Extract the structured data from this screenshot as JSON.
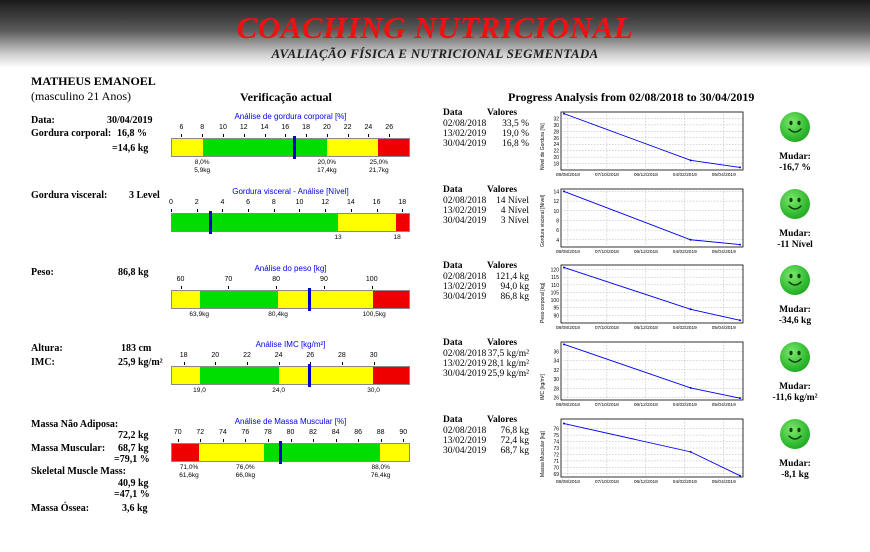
{
  "header": {
    "title": "COACHING NUTRICIONAL",
    "subtitle": "AVALIAÇÃO FÍSICA E NUTRICIONAL SEGMENTADA"
  },
  "person": {
    "name": "MATHEUS EMANOEL",
    "info": "(masculino 21 Anos)"
  },
  "headers": {
    "verif": "Verificação actual",
    "progress": "Progress Analysis from 02/08/2018 to 30/04/2019",
    "data": "Data",
    "valores": "Valores"
  },
  "left": {
    "data_label": "Data:",
    "data_value": "30/04/2019",
    "gordura_label": "Gordura corporal:",
    "gordura_value": "16,8 %",
    "gordura_kg": "=14,6 kg",
    "visceral_label": "Gordura visceral:",
    "visceral_value": "3 Level",
    "peso_label": "Peso:",
    "peso_value": "86,8 kg",
    "altura_label": "Altura:",
    "altura_value": "183 cm",
    "imc_label": "IMC:",
    "imc_value": "25,9 kg/m²",
    "massa_na_label": "Massa Não Adiposa:",
    "massa_na_value": "72,2 kg",
    "massa_musc_label": "Massa Muscular:",
    "massa_musc_value": "68,7 kg",
    "massa_musc_pct": "=79,1 %",
    "skeletal_label": "Skeletal Muscle Mass:",
    "skeletal_value": "40,9 kg",
    "skeletal_pct": "=47,1 %",
    "ossea_label": "Massa Óssea:",
    "ossea_value": "3,6 kg"
  },
  "gauges": [
    {
      "title": "Análise de gordura corporal [%]",
      "ticks": [
        "6",
        "8",
        "10",
        "12",
        "14",
        "16",
        "18",
        "20",
        "22",
        "24",
        "26"
      ],
      "min": 5,
      "max": 28,
      "segments": [
        {
          "from": 5,
          "to": 8,
          "color": "#ffff00"
        },
        {
          "from": 8,
          "to": 20,
          "color": "#00dd00"
        },
        {
          "from": 20,
          "to": 25,
          "color": "#ffff00"
        },
        {
          "from": 25,
          "to": 28,
          "color": "#ee0000"
        }
      ],
      "value": 16.8,
      "below": [
        {
          "at": 8,
          "l1": "8,0%",
          "l2": "5,9kg"
        },
        {
          "at": 20,
          "l1": "20,0%",
          "l2": "17,4kg"
        },
        {
          "at": 25,
          "l1": "25,0%",
          "l2": "21,7kg"
        }
      ]
    },
    {
      "title": "Gordura visceral - Análise [Nível]",
      "ticks": [
        "0",
        "2",
        "4",
        "6",
        "8",
        "10",
        "12",
        "14",
        "16",
        "18"
      ],
      "min": 0,
      "max": 18.6,
      "segments": [
        {
          "from": 0,
          "to": 13,
          "color": "#00dd00"
        },
        {
          "from": 13,
          "to": 17.6,
          "color": "#ffff00"
        },
        {
          "from": 17.6,
          "to": 18.6,
          "color": "#ee0000"
        }
      ],
      "value": 3,
      "below": [
        {
          "at": 13,
          "l1": "13",
          "l2": ""
        },
        {
          "at": 17.6,
          "l1": "18",
          "l2": ""
        }
      ]
    },
    {
      "title": "Análise do peso [kg]",
      "ticks": [
        "60",
        "70",
        "80",
        "90",
        "100"
      ],
      "min": 58,
      "max": 108,
      "segments": [
        {
          "from": 58,
          "to": 63.9,
          "color": "#ffff00"
        },
        {
          "from": 63.9,
          "to": 80.4,
          "color": "#00dd00"
        },
        {
          "from": 80.4,
          "to": 100.5,
          "color": "#ffff00"
        },
        {
          "from": 100.5,
          "to": 108,
          "color": "#ee0000"
        }
      ],
      "value": 86.8,
      "below": [
        {
          "at": 63.9,
          "l1": "63,9kg",
          "l2": ""
        },
        {
          "at": 80.4,
          "l1": "80,4kg",
          "l2": ""
        },
        {
          "at": 100.5,
          "l1": "100,5kg",
          "l2": ""
        }
      ]
    },
    {
      "title": "Análise IMC [kg/m²]",
      "ticks": [
        "18",
        "20",
        "22",
        "24",
        "26",
        "28",
        "30"
      ],
      "min": 17.2,
      "max": 32.3,
      "segments": [
        {
          "from": 17.2,
          "to": 19,
          "color": "#ffff00"
        },
        {
          "from": 19,
          "to": 24,
          "color": "#00dd00"
        },
        {
          "from": 24,
          "to": 30,
          "color": "#ffff00"
        },
        {
          "from": 30,
          "to": 32.3,
          "color": "#ee0000"
        }
      ],
      "value": 25.9,
      "below": [
        {
          "at": 19,
          "l1": "19,0",
          "l2": ""
        },
        {
          "at": 24,
          "l1": "24,0",
          "l2": ""
        },
        {
          "at": 30,
          "l1": "30,0",
          "l2": ""
        }
      ]
    },
    {
      "title": "Análise de Massa Muscular [%]",
      "ticks": [
        "70",
        "72",
        "74",
        "76",
        "78",
        "80",
        "82",
        "84",
        "86",
        "88",
        "90"
      ],
      "min": 69.4,
      "max": 90.6,
      "segments": [
        {
          "from": 69.4,
          "to": 71.8,
          "color": "#ee0000"
        },
        {
          "from": 71.8,
          "to": 77.6,
          "color": "#ffff00"
        },
        {
          "from": 77.6,
          "to": 88,
          "color": "#00dd00"
        },
        {
          "from": 88,
          "to": 90.6,
          "color": "#ffff00"
        }
      ],
      "value": 79.1,
      "below": [
        {
          "at": 71,
          "l1": "71,0%",
          "l2": "61,6kg"
        },
        {
          "at": 76,
          "l1": "76,0%",
          "l2": "66,0kg"
        },
        {
          "at": 88,
          "l1": "88,0%",
          "l2": "76,4kg"
        }
      ]
    }
  ],
  "tables": [
    {
      "dates": [
        "02/08/2018",
        "13/02/2019",
        "30/04/2019"
      ],
      "values": [
        "33,5 %",
        "19,0 %",
        "16,8 %"
      ]
    },
    {
      "dates": [
        "02/08/2018",
        "13/02/2019",
        "30/04/2019"
      ],
      "values": [
        "14 Nível",
        "4 Nível",
        "3 Nível"
      ]
    },
    {
      "dates": [
        "02/08/2018",
        "13/02/2019",
        "30/04/2019"
      ],
      "values": [
        "121,4 kg",
        "94,0 kg",
        "86,8 kg"
      ]
    },
    {
      "dates": [
        "02/08/2018",
        "13/02/2019",
        "30/04/2019"
      ],
      "values": [
        "37,5 kg/m²",
        "28,1 kg/m²",
        "25,9 kg/m²"
      ]
    },
    {
      "dates": [
        "02/08/2018",
        "13/02/2019",
        "30/04/2019"
      ],
      "values": [
        "76,8 kg",
        "72,4 kg",
        "68,7 kg"
      ]
    }
  ],
  "chart_data": [
    {
      "type": "line",
      "ylabel": "Nível de Gordura [%]",
      "x": [
        "02/08/2018",
        "13/02/2019",
        "30/04/2019"
      ],
      "values": [
        33.5,
        19.0,
        16.8
      ],
      "yticks": [
        "18",
        "20",
        "22",
        "24",
        "26",
        "28",
        "30",
        "32"
      ],
      "ylim": [
        16,
        34
      ],
      "xticks": [
        "08/08/2018",
        "07/10/2018",
        "06/12/2018",
        "04/02/2019",
        "05/04/2019"
      ]
    },
    {
      "type": "line",
      "ylabel": "Gordura visceral [Nível]",
      "x": [
        "02/08/2018",
        "13/02/2019",
        "30/04/2019"
      ],
      "values": [
        14,
        4,
        3
      ],
      "yticks": [
        "4",
        "6",
        "8",
        "10",
        "12",
        "14"
      ],
      "ylim": [
        2.5,
        14.5
      ],
      "xticks": [
        "08/08/2018",
        "07/10/2018",
        "06/12/2018",
        "04/02/2019",
        "05/04/2019"
      ]
    },
    {
      "type": "line",
      "ylabel": "Peso corporal [kg]",
      "x": [
        "02/08/2018",
        "13/02/2019",
        "30/04/2019"
      ],
      "values": [
        121.4,
        94.0,
        86.8
      ],
      "yticks": [
        "90",
        "95",
        "100",
        "105",
        "110",
        "115",
        "120"
      ],
      "ylim": [
        85,
        123
      ],
      "xticks": [
        "08/08/2018",
        "07/10/2018",
        "06/12/2018",
        "04/02/2019",
        "05/04/2019"
      ]
    },
    {
      "type": "line",
      "ylabel": "IMC [kg/m²]",
      "x": [
        "02/08/2018",
        "13/02/2019",
        "30/04/2019"
      ],
      "values": [
        37.5,
        28.1,
        25.9
      ],
      "yticks": [
        "26",
        "28",
        "30",
        "32",
        "34",
        "36"
      ],
      "ylim": [
        25.5,
        38
      ],
      "xticks": [
        "08/08/2018",
        "07/10/2018",
        "06/12/2018",
        "04/02/2019",
        "05/04/2019"
      ]
    },
    {
      "type": "line",
      "ylabel": "Massa Muscular [kg]",
      "x": [
        "02/08/2018",
        "13/02/2019",
        "30/04/2019"
      ],
      "values": [
        76.8,
        72.4,
        68.7
      ],
      "yticks": [
        "69",
        "70",
        "71",
        "72",
        "73",
        "74",
        "75",
        "76"
      ],
      "ylim": [
        68.5,
        77.5
      ],
      "xticks": [
        "08/08/2018",
        "07/10/2018",
        "06/12/2018",
        "04/02/2019",
        "05/04/2019"
      ]
    }
  ],
  "mudar": [
    {
      "label": "Mudar:",
      "value": "-16,7 %"
    },
    {
      "label": "Mudar:",
      "value": "-11 Nível"
    },
    {
      "label": "Mudar:",
      "value": "-34,6 kg"
    },
    {
      "label": "Mudar:",
      "value": "-11,6 kg/m²"
    },
    {
      "label": "Mudar:",
      "value": "-8,1 kg"
    }
  ]
}
